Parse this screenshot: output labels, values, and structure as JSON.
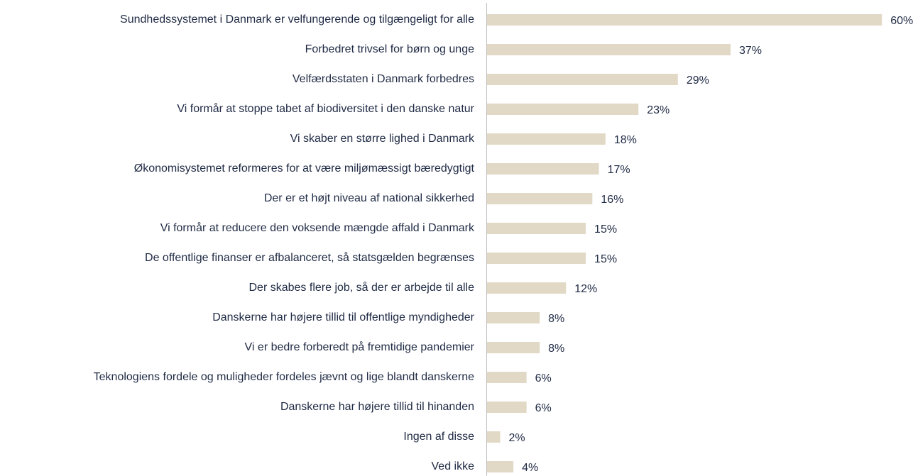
{
  "chart_data": {
    "type": "hbar",
    "categories": [
      "Sundhedssystemet i Danmark er velfungerende og tilgængeligt for alle",
      "Forbedret trivsel for børn og unge",
      "Velfærdsstaten i Danmark forbedres",
      "Vi formår at stoppe tabet af biodiversitet i den danske natur",
      "Vi skaber en større lighed i Danmark",
      "Økonomisystemet reformeres for at være miljømæssigt bæredygtigt",
      "Der er et højt niveau af national sikkerhed",
      "Vi formår at reducere den voksende mængde affald i Danmark",
      "De offentlige finanser er afbalanceret, så statsgælden begrænses",
      "Der skabes flere job, så der er arbejde til alle",
      "Danskerne har højere tillid til offentlige myndigheder",
      "Vi er bedre forberedt på fremtidige pandemier",
      "Teknologiens fordele og muligheder fordeles jævnt og lige blandt danskerne",
      "Danskerne har højere tillid til hinanden",
      "Ingen af disse",
      "Ved ikke"
    ],
    "values": [
      60,
      37,
      29,
      23,
      18,
      17,
      16,
      15,
      15,
      12,
      8,
      8,
      6,
      6,
      2,
      4
    ],
    "value_labels": [
      "60%",
      "37%",
      "29%",
      "23%",
      "18%",
      "17%",
      "16%",
      "15%",
      "15%",
      "12%",
      "8%",
      "8%",
      "6%",
      "6%",
      "2%",
      "4%"
    ],
    "color": "#e2d8c6"
  }
}
